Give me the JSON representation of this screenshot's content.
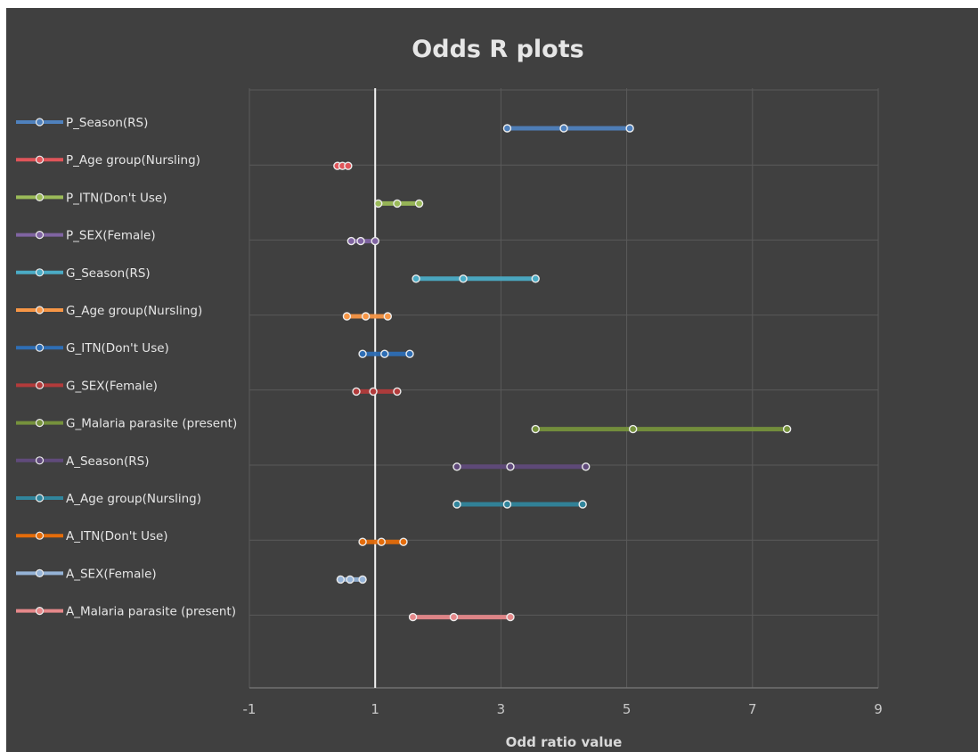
{
  "chart_data": {
    "type": "scatter",
    "title": "Odds R plots",
    "xlabel": "Odd ratio value",
    "ylabel": "",
    "xlim": [
      -1,
      9
    ],
    "x_ticks": [
      "-1",
      "1",
      "3",
      "5",
      "7",
      "9"
    ],
    "grid": true,
    "legend_position": "left",
    "reference_line_x": 1,
    "series": [
      {
        "name": "P_Season(RS)",
        "color": "#4f81bd",
        "values": [
          3.1,
          4.0,
          5.05
        ]
      },
      {
        "name": "P_Age group(Nursling)",
        "color": "#e0555a",
        "values": [
          0.4,
          0.48,
          0.57
        ]
      },
      {
        "name": "P_ITN(Don't Use)",
        "color": "#9bbb59",
        "values": [
          1.05,
          1.35,
          1.7
        ]
      },
      {
        "name": "P_SEX(Female)",
        "color": "#8064a2",
        "values": [
          0.62,
          0.77,
          1.0
        ]
      },
      {
        "name": "G_Season(RS)",
        "color": "#4bacc6",
        "values": [
          1.65,
          2.4,
          3.55
        ]
      },
      {
        "name": "G_Age group(Nursling)",
        "color": "#f79646",
        "values": [
          0.55,
          0.85,
          1.2
        ]
      },
      {
        "name": "G_ITN(Don't Use)",
        "color": "#2e6eb5",
        "values": [
          0.8,
          1.15,
          1.55
        ]
      },
      {
        "name": "G_SEX(Female)",
        "color": "#b23b3b",
        "values": [
          0.7,
          0.97,
          1.35
        ]
      },
      {
        "name": "G_Malaria parasite (present)",
        "color": "#76923c",
        "values": [
          3.55,
          5.1,
          7.55
        ]
      },
      {
        "name": "A_Season(RS)",
        "color": "#604a7b",
        "values": [
          2.3,
          3.15,
          4.35
        ]
      },
      {
        "name": "A_Age group(Nursling)",
        "color": "#31859c",
        "values": [
          2.3,
          3.1,
          4.3
        ]
      },
      {
        "name": "A_ITN(Don't Use)",
        "color": "#e46c0a",
        "values": [
          0.8,
          1.1,
          1.45
        ]
      },
      {
        "name": "A_SEX(Female)",
        "color": "#95b3d7",
        "values": [
          0.45,
          0.6,
          0.8
        ]
      },
      {
        "name": "A_Malaria parasite (present)",
        "color": "#e6888a",
        "values": [
          1.6,
          2.25,
          3.15
        ]
      }
    ]
  }
}
